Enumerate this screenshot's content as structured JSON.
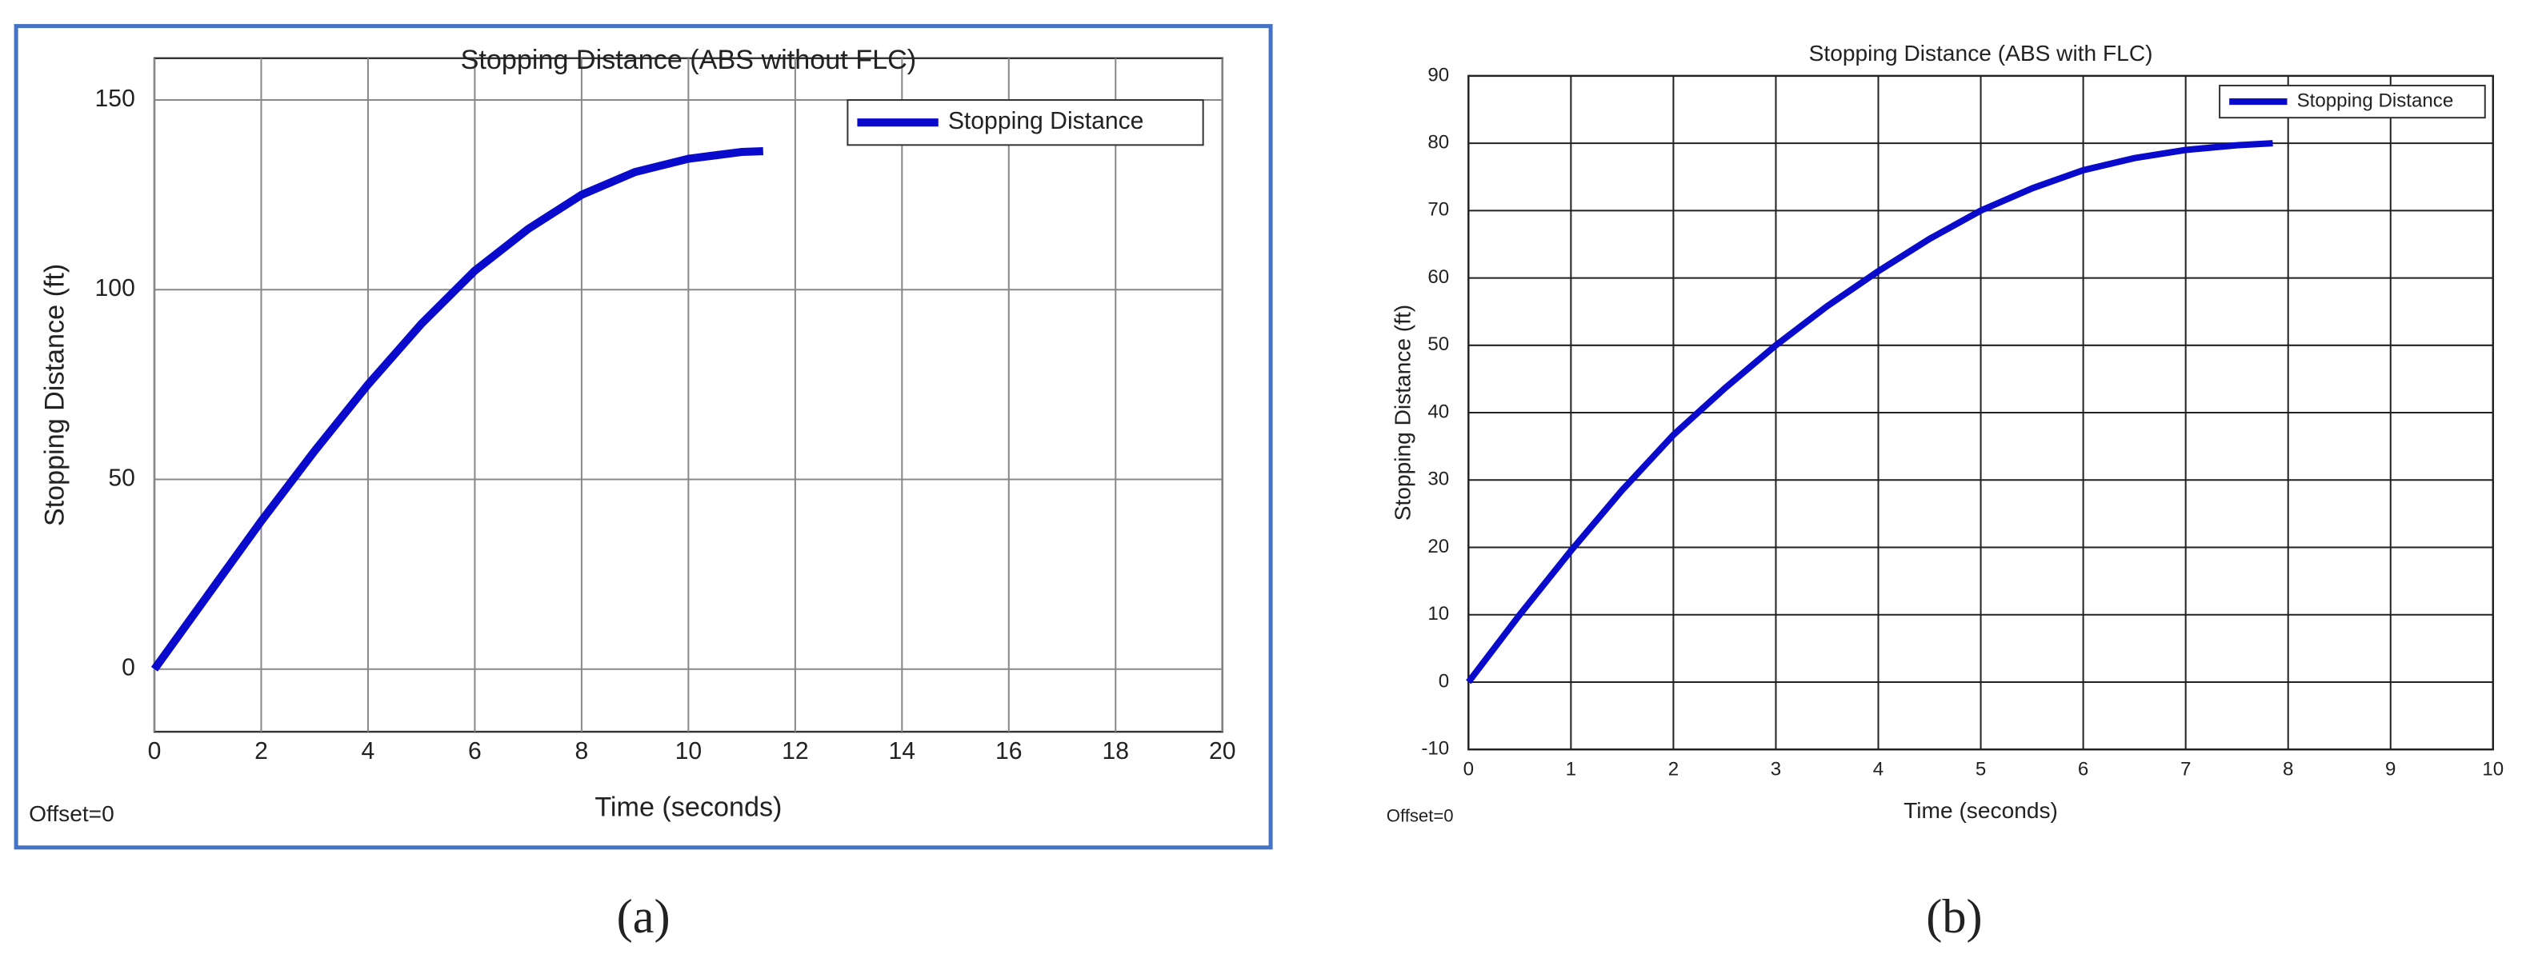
{
  "chart_data": [
    {
      "type": "line",
      "title": "Stopping Distance (ABS without FLC)",
      "x_label": "Time (seconds)",
      "y_label": "Stopping Distance (ft)",
      "annotation": "Offset=0",
      "panel_label": "(a)",
      "x": [
        0,
        1,
        2,
        3,
        4,
        5,
        6,
        7,
        8,
        9,
        10,
        11,
        11.4
      ],
      "series": [
        {
          "name": "Stopping Distance",
          "color": "#0a0acc",
          "values": [
            0,
            19.5,
            39,
            57.5,
            75,
            91,
            105,
            116,
            125,
            131,
            134.5,
            136.3,
            136.5
          ]
        }
      ],
      "xlim": [
        0,
        20
      ],
      "xticks": [
        0,
        2,
        4,
        6,
        8,
        10,
        12,
        14,
        16,
        18,
        20
      ],
      "ylim": [
        -16.5,
        161
      ],
      "yticks": [
        0,
        50,
        100,
        150
      ],
      "grid": true,
      "legend": "upper right"
    },
    {
      "type": "line",
      "title": "Stopping Distance (ABS with FLC)",
      "x_label": "Time (seconds)",
      "y_label": "Stopping Distance (ft)",
      "annotation": "Offset=0",
      "panel_label": "(b)",
      "x": [
        0,
        0.5,
        1,
        1.5,
        2,
        2.5,
        3,
        3.5,
        4,
        4.5,
        5,
        5.5,
        6,
        6.5,
        7,
        7.5,
        7.85
      ],
      "series": [
        {
          "name": "Stopping Distance",
          "color": "#0a0acc",
          "values": [
            0,
            10,
            19.5,
            28.5,
            36.7,
            43.6,
            50,
            55.8,
            61,
            65.8,
            70,
            73.3,
            76,
            77.8,
            79,
            79.7,
            80
          ]
        }
      ],
      "xlim": [
        0,
        10
      ],
      "xticks": [
        0,
        1,
        2,
        3,
        4,
        5,
        6,
        7,
        8,
        9,
        10
      ],
      "ylim": [
        -10,
        90
      ],
      "yticks": [
        -10,
        0,
        10,
        20,
        30,
        40,
        50,
        60,
        70,
        80,
        90
      ],
      "grid": true,
      "legend": "upper right"
    }
  ]
}
